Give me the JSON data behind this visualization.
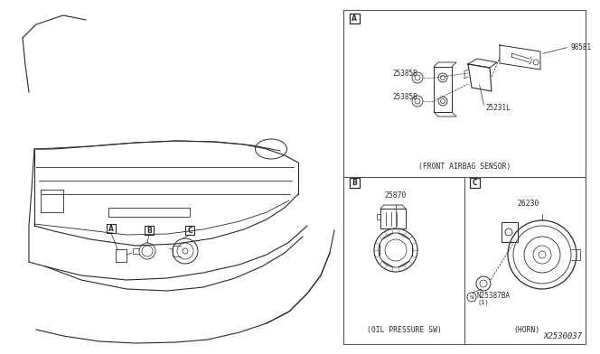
{
  "bg_color": "#ffffff",
  "line_color": "#2a2a2a",
  "text_color": "#2a2a2a",
  "border_color": "#555555",
  "fig_width": 6.4,
  "fig_height": 3.72,
  "diagram_number": "X2530037",
  "panel_A_caption": "(FRONT AIRBAG SENSOR)",
  "panel_B_caption": "(OIL PRESSURE SW)",
  "panel_C_caption": "(HORN)",
  "parts": {
    "A_main": "98581",
    "A_bracket": "25231L",
    "A_bolt1": "25385B",
    "A_bolt2": "25385B",
    "B_part": "25870",
    "C_main": "26230",
    "C_nut": "N25387BA",
    "C_nut_num": "(1)"
  }
}
